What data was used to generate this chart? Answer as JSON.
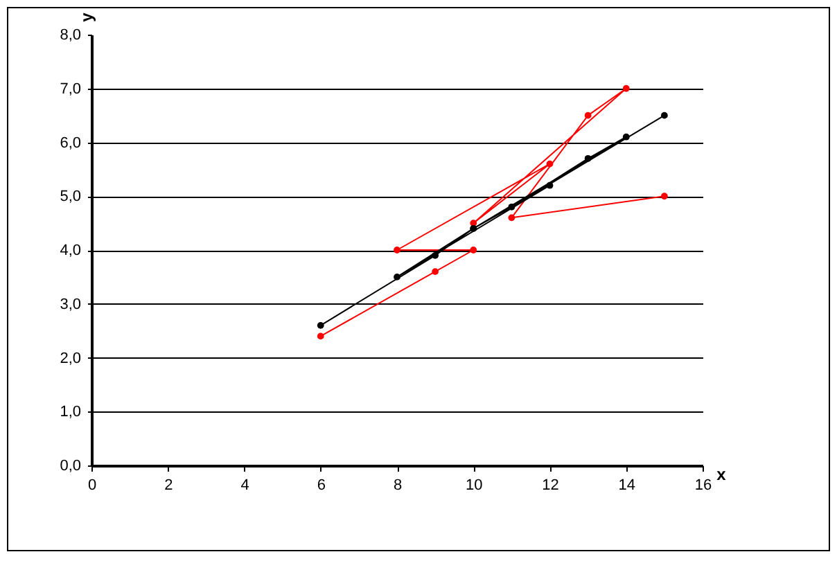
{
  "chart_data": {
    "type": "line",
    "xlabel": "x",
    "ylabel": "y",
    "xlim": [
      0,
      16
    ],
    "xticks": [
      0,
      2,
      4,
      6,
      8,
      10,
      12,
      14,
      16
    ],
    "ylim": [
      0,
      8
    ],
    "yticks": [
      {
        "value": 0,
        "label": "0,0"
      },
      {
        "value": 1,
        "label": "1,0"
      },
      {
        "value": 2,
        "label": "2,0"
      },
      {
        "value": 3,
        "label": "3,0"
      },
      {
        "value": 4,
        "label": "4,0"
      },
      {
        "value": 5,
        "label": "5,0"
      },
      {
        "value": 6,
        "label": "6,0"
      },
      {
        "value": 7,
        "label": "7,0"
      },
      {
        "value": 8,
        "label": "8,0"
      }
    ],
    "grid": "y",
    "marker": "circle",
    "series": [
      {
        "color": "#ff0000",
        "x": [
          6,
          9,
          10,
          8,
          12,
          10,
          14,
          13,
          11,
          15
        ],
        "values": [
          2.4,
          3.6,
          4.0,
          4.0,
          5.6,
          4.5,
          7.0,
          6.5,
          4.6,
          5.0
        ]
      },
      {
        "color": "#000000",
        "x": [
          6,
          9,
          10,
          8,
          12,
          10,
          14,
          13,
          11,
          15
        ],
        "values": [
          2.6,
          3.9,
          4.4,
          3.5,
          5.2,
          4.4,
          6.1,
          5.7,
          4.8,
          6.5
        ]
      }
    ]
  }
}
